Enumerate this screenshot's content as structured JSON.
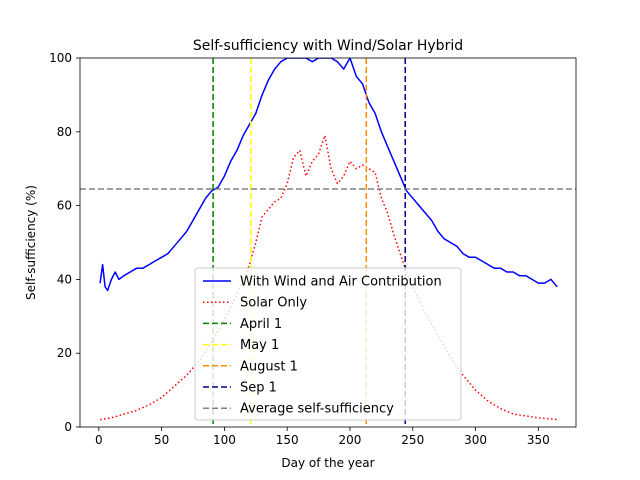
{
  "chart_data": {
    "type": "line",
    "title": "Self-sufficiency with Wind/Solar Hybrid",
    "xlabel": "Day of the year",
    "ylabel": "Self-sufficiency (%)",
    "xlim": [
      -15,
      380
    ],
    "ylim": [
      0,
      100
    ],
    "xticks": [
      "0",
      "50",
      "100",
      "150",
      "200",
      "250",
      "300",
      "350"
    ],
    "yticks": [
      "0",
      "20",
      "40",
      "60",
      "80",
      "100"
    ],
    "grid": false,
    "legend_position": "lower-center",
    "series": [
      {
        "name": "With Wind and Air Contribution",
        "color": "#0000ff",
        "style": "solid",
        "x": [
          1,
          3,
          5,
          7,
          10,
          13,
          16,
          20,
          25,
          30,
          35,
          40,
          45,
          50,
          55,
          60,
          65,
          70,
          75,
          80,
          85,
          90,
          95,
          100,
          105,
          110,
          115,
          120,
          125,
          130,
          135,
          140,
          145,
          150,
          155,
          160,
          165,
          170,
          175,
          180,
          185,
          190,
          195,
          200,
          205,
          210,
          215,
          220,
          225,
          230,
          235,
          240,
          245,
          250,
          255,
          260,
          265,
          270,
          275,
          280,
          285,
          290,
          295,
          300,
          305,
          310,
          315,
          320,
          325,
          330,
          335,
          340,
          345,
          350,
          355,
          360,
          365
        ],
        "values": [
          39,
          44,
          38,
          37,
          40,
          42,
          40,
          41,
          42,
          43,
          43,
          44,
          45,
          46,
          47,
          49,
          51,
          53,
          56,
          59,
          62,
          64,
          65,
          68,
          72,
          75,
          79,
          82,
          85,
          90,
          94,
          97,
          99,
          100,
          100,
          100,
          100,
          99,
          100,
          100,
          100,
          99,
          97,
          100,
          95,
          93,
          88,
          85,
          80,
          76,
          72,
          68,
          64,
          62,
          60,
          58,
          56,
          53,
          51,
          50,
          49,
          47,
          46,
          46,
          45,
          44,
          43,
          43,
          42,
          42,
          41,
          41,
          40,
          39,
          39,
          40,
          38
        ]
      },
      {
        "name": "Solar Only",
        "color": "#ff0000",
        "style": "dotted",
        "x": [
          1,
          10,
          20,
          30,
          40,
          50,
          60,
          70,
          80,
          90,
          100,
          110,
          120,
          125,
          130,
          135,
          140,
          145,
          150,
          155,
          160,
          165,
          170,
          175,
          180,
          185,
          190,
          195,
          200,
          205,
          210,
          215,
          220,
          225,
          230,
          235,
          240,
          245,
          250,
          260,
          270,
          280,
          290,
          300,
          310,
          320,
          330,
          340,
          350,
          360,
          365
        ],
        "values": [
          2,
          2.5,
          3.5,
          4.5,
          6,
          8,
          11,
          14,
          18,
          23,
          29,
          36,
          44,
          50,
          57,
          59,
          61,
          62,
          66,
          73,
          75,
          68,
          72,
          74,
          79,
          70,
          66,
          68,
          72,
          70,
          71,
          70,
          69,
          62,
          58,
          52,
          47,
          42,
          38,
          31,
          25,
          19,
          14,
          10,
          7,
          5,
          3.5,
          3,
          2.5,
          2.2,
          2
        ]
      }
    ],
    "vlines": [
      {
        "name": "April 1",
        "x": 91,
        "color": "#008000"
      },
      {
        "name": "May 1",
        "x": 121,
        "color": "#ffff00"
      },
      {
        "name": "August 1",
        "x": 213,
        "color": "#ff8c00"
      },
      {
        "name": "Sep 1",
        "x": 244,
        "color": "#00008b"
      }
    ],
    "hlines": [
      {
        "name": "Average self-sufficiency",
        "y": 64.5,
        "color": "#808080"
      }
    ]
  }
}
